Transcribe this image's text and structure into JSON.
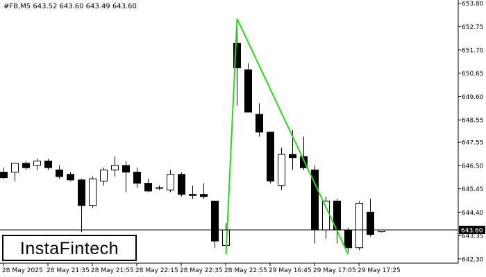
{
  "header": {
    "symbol_line": "#FB,M5  643.52 643.60 643.49 643.60"
  },
  "logo": {
    "text": "InstaFintech"
  },
  "colors": {
    "background": "#ffffff",
    "candle": "#000000",
    "pattern_line": "#22dd11",
    "current_price_tag": "#000000"
  },
  "chart_data": {
    "type": "candlestick",
    "ylim": [
      642.2,
      653.85
    ],
    "y_ticks": [
      "653.80",
      "652.75",
      "651.70",
      "650.65",
      "649.60",
      "648.55",
      "647.55",
      "646.50",
      "645.45",
      "644.40",
      "643.35",
      "642.30"
    ],
    "y_tick_values": [
      653.8,
      652.75,
      651.7,
      650.65,
      649.6,
      648.55,
      647.55,
      646.5,
      645.45,
      644.4,
      643.35,
      642.3
    ],
    "x_ticks": [
      "28 May 2025",
      "28 May 21:35",
      "28 May 21:55",
      "28 May 22:15",
      "28 May 22:35",
      "28 May 22:55",
      "29 May 16:45",
      "29 May 17:05",
      "29 May 17:25"
    ],
    "current_price": 643.6,
    "current_price_label": "643.60",
    "grid": false,
    "candles": [
      {
        "o": 646.2,
        "h": 646.4,
        "l": 645.9,
        "c": 645.95
      },
      {
        "o": 646.2,
        "h": 646.6,
        "l": 645.8,
        "c": 646.6
      },
      {
        "o": 646.6,
        "h": 646.7,
        "l": 646.3,
        "c": 646.4
      },
      {
        "o": 646.5,
        "h": 646.8,
        "l": 646.3,
        "c": 646.7
      },
      {
        "o": 646.7,
        "h": 646.8,
        "l": 646.3,
        "c": 646.4
      },
      {
        "o": 646.3,
        "h": 646.5,
        "l": 645.9,
        "c": 646.0
      },
      {
        "o": 646.1,
        "h": 646.2,
        "l": 645.8,
        "c": 645.85
      },
      {
        "o": 645.85,
        "h": 645.9,
        "l": 643.5,
        "c": 644.7
      },
      {
        "o": 644.7,
        "h": 646.0,
        "l": 644.6,
        "c": 645.9
      },
      {
        "o": 645.8,
        "h": 646.4,
        "l": 645.6,
        "c": 646.3
      },
      {
        "o": 646.3,
        "h": 646.9,
        "l": 646.0,
        "c": 646.5
      },
      {
        "o": 646.5,
        "h": 646.7,
        "l": 645.3,
        "c": 646.2
      },
      {
        "o": 646.2,
        "h": 646.4,
        "l": 645.5,
        "c": 645.7
      },
      {
        "o": 645.7,
        "h": 645.9,
        "l": 645.3,
        "c": 645.35
      },
      {
        "o": 645.5,
        "h": 645.6,
        "l": 645.4,
        "c": 645.5
      },
      {
        "o": 645.4,
        "h": 646.3,
        "l": 645.3,
        "c": 646.1
      },
      {
        "o": 646.1,
        "h": 646.2,
        "l": 645.1,
        "c": 645.2
      },
      {
        "o": 645.2,
        "h": 645.6,
        "l": 645.0,
        "c": 645.15
      },
      {
        "o": 645.2,
        "h": 645.7,
        "l": 645.0,
        "c": 645.1
      },
      {
        "o": 644.9,
        "h": 644.9,
        "l": 642.8,
        "c": 643.1
      },
      {
        "o": 642.9,
        "h": 643.9,
        "l": 642.7,
        "c": 643.6
      },
      {
        "o": 652.0,
        "h": 652.7,
        "l": 649.2,
        "c": 650.9
      },
      {
        "o": 650.8,
        "h": 651.1,
        "l": 648.9,
        "c": 648.9
      },
      {
        "o": 648.8,
        "h": 649.3,
        "l": 647.8,
        "c": 648.0
      },
      {
        "o": 648.0,
        "h": 648.0,
        "l": 645.7,
        "c": 645.8
      },
      {
        "o": 645.6,
        "h": 647.3,
        "l": 645.4,
        "c": 647.0
      },
      {
        "o": 647.0,
        "h": 648.1,
        "l": 646.3,
        "c": 646.85
      },
      {
        "o": 646.9,
        "h": 647.8,
        "l": 646.3,
        "c": 646.4
      },
      {
        "o": 646.3,
        "h": 646.5,
        "l": 643.0,
        "c": 643.6
      },
      {
        "o": 643.6,
        "h": 645.1,
        "l": 643.2,
        "c": 644.9
      },
      {
        "o": 644.9,
        "h": 645.0,
        "l": 643.0,
        "c": 643.6
      },
      {
        "o": 643.6,
        "h": 643.7,
        "l": 642.6,
        "c": 642.8
      },
      {
        "o": 642.8,
        "h": 644.9,
        "l": 642.7,
        "c": 644.8
      },
      {
        "o": 644.4,
        "h": 645.0,
        "l": 643.3,
        "c": 643.4
      },
      {
        "o": 643.52,
        "h": 643.6,
        "l": 643.49,
        "c": 643.6
      }
    ],
    "pattern_lines": [
      {
        "from_index": 20,
        "from_price": 642.5,
        "to_index": 21,
        "to_price": 653.1
      },
      {
        "from_index": 21,
        "from_price": 653.1,
        "to_index": 31,
        "to_price": 642.5
      }
    ]
  }
}
